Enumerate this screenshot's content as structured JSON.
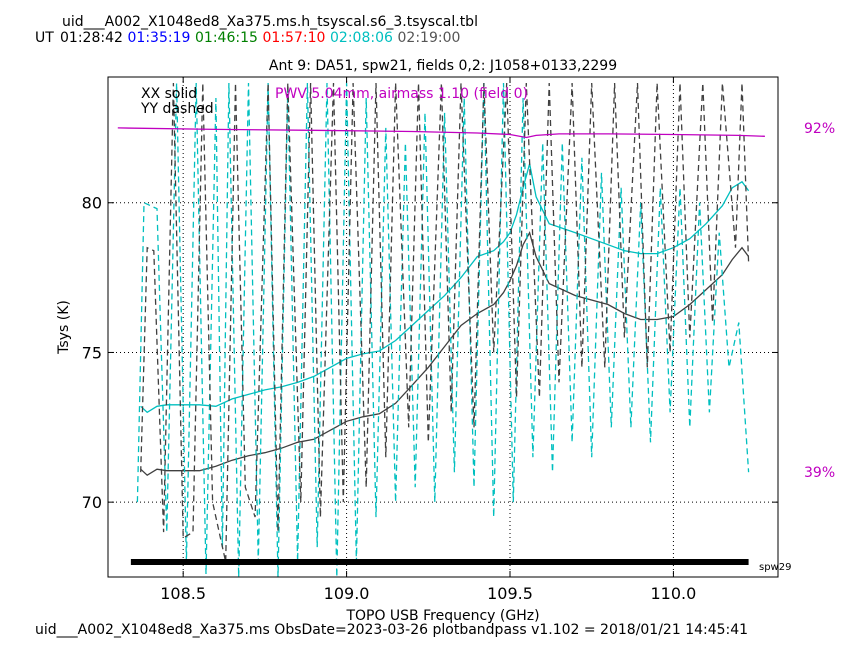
{
  "header": {
    "file_title": "uid___A002_X1048ed8_Xa375.ms.h_tsyscal.s6_3.tsyscal.tbl",
    "ut_label": "UT",
    "ut_times": [
      {
        "text": "01:28:42",
        "color": "#000000"
      },
      {
        "text": "01:35:19",
        "color": "#0000ff"
      },
      {
        "text": "01:46:15",
        "color": "#008000"
      },
      {
        "text": "01:57:10",
        "color": "#ff0000"
      },
      {
        "text": "02:08:06",
        "color": "#00bfbf"
      },
      {
        "text": "02:19:00",
        "color": "#555555"
      }
    ]
  },
  "footer": {
    "info": "uid___A002_X1048ed8_Xa375.ms  ObsDate=2023-03-26   plotbandpass v1.102 = 2018/01/21 14:45:41"
  },
  "colors": {
    "xx_cyan": "#00bfbf",
    "xx_dark": "#404040",
    "pwv_magenta": "#c000c0",
    "grid": "#000000"
  },
  "chart_data": {
    "type": "line",
    "title": "Ant 9: DA51,  spw21,  fields 0,2: J1058+0133,2299",
    "xlabel": "TOPO USB Frequency (GHz)",
    "ylabel": "Tsys (K)",
    "xlim": [
      108.27,
      110.32
    ],
    "ylim": [
      67.5,
      84.2
    ],
    "xticks": [
      108.5,
      109.0,
      109.5,
      110.0
    ],
    "xtick_labels": [
      "108.5",
      "109.0",
      "109.5",
      "110.0"
    ],
    "yticks": [
      70,
      75,
      80
    ],
    "ytick_labels": [
      "70",
      "75",
      "80"
    ],
    "grid": true,
    "legend": {
      "solid": "XX solid",
      "dashed": "YY dashed"
    },
    "pwv_label": "PWV 5.04mm, airmass 1.10 (field 0)",
    "transmission_axis": {
      "top_label": "92%",
      "bottom_label": "39%"
    },
    "spw_bar": {
      "label": "spw29",
      "x_start": 108.34,
      "x_end": 110.23
    },
    "transmission_curve": {
      "name": "atmospheric transmission",
      "x": [
        108.3,
        108.6,
        108.9,
        109.2,
        109.4,
        109.5,
        109.55,
        109.58,
        109.65,
        109.8,
        110.0,
        110.2,
        110.28
      ],
      "y": [
        82.5,
        82.45,
        82.42,
        82.38,
        82.33,
        82.28,
        82.18,
        82.25,
        82.3,
        82.3,
        82.28,
        82.25,
        82.22
      ]
    },
    "series": [
      {
        "name": "XX solid",
        "style": "solid",
        "color_key": "xx_cyan",
        "x": [
          108.37,
          108.39,
          108.42,
          108.45,
          108.5,
          108.55,
          108.6,
          108.65,
          108.7,
          108.75,
          108.8,
          108.85,
          108.9,
          108.95,
          109.0,
          109.05,
          109.1,
          109.15,
          109.2,
          109.25,
          109.3,
          109.35,
          109.4,
          109.45,
          109.48,
          109.5,
          109.52,
          109.54,
          109.56,
          109.58,
          109.62,
          109.7,
          109.8,
          109.85,
          109.9,
          109.95,
          110.0,
          110.05,
          110.1,
          110.15,
          110.18,
          110.21,
          110.23
        ],
        "y": [
          73.2,
          73.0,
          73.2,
          73.25,
          73.25,
          73.25,
          73.2,
          73.45,
          73.6,
          73.75,
          73.85,
          74.0,
          74.2,
          74.5,
          74.8,
          74.95,
          75.05,
          75.4,
          75.9,
          76.4,
          76.9,
          77.5,
          78.2,
          78.4,
          78.7,
          79.0,
          79.6,
          80.5,
          81.3,
          80.2,
          79.3,
          79.0,
          78.6,
          78.4,
          78.3,
          78.3,
          78.5,
          78.8,
          79.3,
          79.9,
          80.5,
          80.7,
          80.4
        ]
      },
      {
        "name": "XX solid",
        "style": "solid",
        "color_key": "xx_dark",
        "x": [
          108.37,
          108.39,
          108.42,
          108.45,
          108.5,
          108.55,
          108.6,
          108.65,
          108.7,
          108.75,
          108.8,
          108.85,
          108.9,
          108.95,
          109.0,
          109.05,
          109.1,
          109.15,
          109.2,
          109.25,
          109.3,
          109.35,
          109.4,
          109.45,
          109.48,
          109.5,
          109.52,
          109.54,
          109.56,
          109.58,
          109.62,
          109.7,
          109.8,
          109.85,
          109.9,
          109.95,
          110.0,
          110.05,
          110.1,
          110.15,
          110.18,
          110.21,
          110.23
        ],
        "y": [
          71.1,
          70.9,
          71.1,
          71.05,
          71.05,
          71.05,
          71.2,
          71.4,
          71.55,
          71.65,
          71.8,
          72.0,
          72.1,
          72.4,
          72.7,
          72.85,
          72.95,
          73.3,
          73.9,
          74.5,
          75.2,
          75.9,
          76.3,
          76.6,
          77.0,
          77.4,
          77.9,
          78.6,
          79.0,
          78.2,
          77.3,
          76.9,
          76.6,
          76.3,
          76.1,
          76.1,
          76.2,
          76.6,
          77.1,
          77.6,
          78.1,
          78.5,
          78.2
        ]
      },
      {
        "name": "YY dashed",
        "style": "dashed",
        "color_key": "xx_cyan",
        "x": [
          108.36,
          108.38,
          108.4,
          108.42,
          108.45,
          108.48,
          108.51,
          108.54,
          108.57,
          108.6,
          108.62,
          108.64,
          108.67,
          108.7,
          108.73,
          108.76,
          108.79,
          108.82,
          108.85,
          108.88,
          108.91,
          108.94,
          108.97,
          109.0,
          109.03,
          109.06,
          109.09,
          109.12,
          109.15,
          109.18,
          109.21,
          109.24,
          109.27,
          109.3,
          109.33,
          109.36,
          109.39,
          109.42,
          109.45,
          109.48,
          109.51,
          109.54,
          109.57,
          109.6,
          109.63,
          109.66,
          109.69,
          109.72,
          109.75,
          109.78,
          109.81,
          109.84,
          109.87,
          109.9,
          109.93,
          109.96,
          109.99,
          110.02,
          110.05,
          110.08,
          110.11,
          110.14,
          110.17,
          110.2,
          110.23
        ],
        "y": [
          70.0,
          80.0,
          79.9,
          79.8,
          69.0,
          84.0,
          68.0,
          84.0,
          67.6,
          83.5,
          68.5,
          84.0,
          67.5,
          84.0,
          68.0,
          84.0,
          67.5,
          83.8,
          68.0,
          84.0,
          68.5,
          84.0,
          67.5,
          84.0,
          68.0,
          83.5,
          69.5,
          82.5,
          70.0,
          82.0,
          70.5,
          83.0,
          70.0,
          83.0,
          71.0,
          83.5,
          70.5,
          84.0,
          69.5,
          84.0,
          70.0,
          83.5,
          71.5,
          82.0,
          71.0,
          82.0,
          72.0,
          81.5,
          71.5,
          81.0,
          72.5,
          80.5,
          72.5,
          80.0,
          72.0,
          80.5,
          73.0,
          80.5,
          72.5,
          80.0,
          73.0,
          79.0,
          74.5,
          76.0,
          71.0
        ]
      },
      {
        "name": "YY dashed",
        "style": "dashed",
        "color_key": "xx_dark",
        "x": [
          108.37,
          108.39,
          108.41,
          108.44,
          108.47,
          108.5,
          108.53,
          108.56,
          108.59,
          108.63,
          108.66,
          108.69,
          108.72,
          108.76,
          108.79,
          108.82,
          108.86,
          108.89,
          108.92,
          108.96,
          108.99,
          109.02,
          109.06,
          109.09,
          109.12,
          109.15,
          109.19,
          109.22,
          109.25,
          109.29,
          109.32,
          109.35,
          109.39,
          109.42,
          109.45,
          109.49,
          109.52,
          109.55,
          109.59,
          109.62,
          109.65,
          109.69,
          109.72,
          109.75,
          109.79,
          109.82,
          109.85,
          109.89,
          109.92,
          109.95,
          109.99,
          110.02,
          110.05,
          110.09,
          110.12,
          110.15,
          110.19,
          110.21,
          110.23
        ],
        "y": [
          71.0,
          78.5,
          78.4,
          69.0,
          84.0,
          68.8,
          69.0,
          84.0,
          70.0,
          68.0,
          84.0,
          70.5,
          69.5,
          84.0,
          69.0,
          84.0,
          70.0,
          84.0,
          69.5,
          84.0,
          70.0,
          84.0,
          70.5,
          84.0,
          71.5,
          84.0,
          72.5,
          84.0,
          72.0,
          84.0,
          73.0,
          84.0,
          72.5,
          84.0,
          75.0,
          84.0,
          73.5,
          84.0,
          73.5,
          84.0,
          74.0,
          84.0,
          74.5,
          84.0,
          74.5,
          84.0,
          75.5,
          84.0,
          74.5,
          84.0,
          75.0,
          84.0,
          75.5,
          84.0,
          76.0,
          84.0,
          78.5,
          84.0,
          78.0
        ]
      }
    ]
  }
}
